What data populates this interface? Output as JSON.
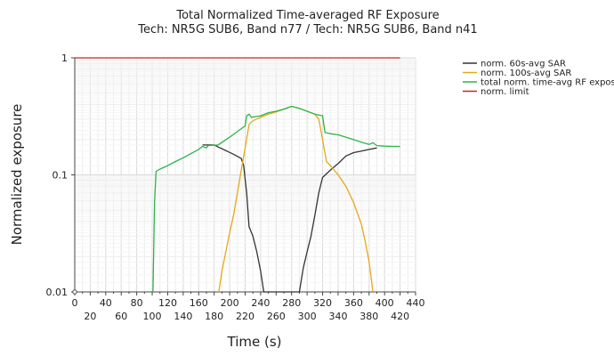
{
  "chart_data": {
    "type": "line",
    "title": "Total Normalized Time-averaged RF Exposure",
    "subtitle": "Tech: NR5G SUB6, Band n77 / Tech: NR5G SUB6, Band n41",
    "xlabel": "Time (s)",
    "ylabel": "Normalized exposure",
    "xlim": [
      0,
      440
    ],
    "ylim": [
      0.01,
      1
    ],
    "y_scale": "log",
    "grid": true,
    "legend_position": "top-right outside",
    "x_ticks_major": [
      "0",
      "40",
      "80",
      "120",
      "160",
      "200",
      "240",
      "280",
      "320",
      "360",
      "400",
      "440"
    ],
    "x_ticks_minor": [
      "20",
      "60",
      "100",
      "140",
      "180",
      "220",
      "260",
      "300",
      "340",
      "380",
      "420"
    ],
    "y_ticks": [
      "0.01",
      "0.1",
      "1"
    ],
    "series": [
      {
        "name": "norm. 60s-avg SAR",
        "color": "#333333",
        "points": [
          [
            165,
            0.18
          ],
          [
            180,
            0.18
          ],
          [
            192,
            0.165
          ],
          [
            205,
            0.15
          ],
          [
            215,
            0.138
          ],
          [
            218,
            0.12
          ],
          [
            222,
            0.07
          ],
          [
            225,
            0.036
          ],
          [
            230,
            0.03
          ],
          [
            235,
            0.022
          ],
          [
            240,
            0.015
          ],
          [
            244,
            0.01
          ],
          [
            290,
            0.01
          ],
          [
            295,
            0.016
          ],
          [
            300,
            0.022
          ],
          [
            305,
            0.03
          ],
          [
            310,
            0.045
          ],
          [
            315,
            0.07
          ],
          [
            320,
            0.095
          ],
          [
            330,
            0.11
          ],
          [
            340,
            0.125
          ],
          [
            350,
            0.145
          ],
          [
            360,
            0.155
          ],
          [
            370,
            0.16
          ],
          [
            380,
            0.165
          ],
          [
            390,
            0.17
          ]
        ]
      },
      {
        "name": "norm. 100s-avg SAR",
        "color": "#e6a817",
        "points": [
          [
            186,
            0.01
          ],
          [
            190,
            0.015
          ],
          [
            195,
            0.022
          ],
          [
            200,
            0.032
          ],
          [
            205,
            0.045
          ],
          [
            210,
            0.07
          ],
          [
            215,
            0.11
          ],
          [
            220,
            0.17
          ],
          [
            225,
            0.27
          ],
          [
            230,
            0.29
          ],
          [
            240,
            0.31
          ],
          [
            250,
            0.33
          ],
          [
            260,
            0.345
          ],
          [
            270,
            0.365
          ],
          [
            280,
            0.385
          ],
          [
            290,
            0.37
          ],
          [
            300,
            0.35
          ],
          [
            310,
            0.33
          ],
          [
            315,
            0.3
          ],
          [
            320,
            0.2
          ],
          [
            325,
            0.13
          ],
          [
            330,
            0.12
          ],
          [
            340,
            0.1
          ],
          [
            350,
            0.08
          ],
          [
            360,
            0.058
          ],
          [
            370,
            0.038
          ],
          [
            375,
            0.027
          ],
          [
            380,
            0.018
          ],
          [
            385,
            0.01
          ]
        ]
      },
      {
        "name": "total norm. time-avg RF exposure",
        "color": "#2db34a",
        "points": [
          [
            101,
            0.01
          ],
          [
            103,
            0.06
          ],
          [
            105,
            0.107
          ],
          [
            110,
            0.112
          ],
          [
            120,
            0.12
          ],
          [
            130,
            0.13
          ],
          [
            140,
            0.14
          ],
          [
            150,
            0.152
          ],
          [
            160,
            0.165
          ],
          [
            165,
            0.175
          ],
          [
            170,
            0.17
          ],
          [
            172,
            0.178
          ],
          [
            185,
            0.18
          ],
          [
            200,
            0.21
          ],
          [
            212,
            0.24
          ],
          [
            220,
            0.262
          ],
          [
            222,
            0.32
          ],
          [
            225,
            0.33
          ],
          [
            228,
            0.31
          ],
          [
            240,
            0.32
          ],
          [
            250,
            0.34
          ],
          [
            260,
            0.35
          ],
          [
            270,
            0.365
          ],
          [
            280,
            0.385
          ],
          [
            290,
            0.37
          ],
          [
            300,
            0.35
          ],
          [
            310,
            0.33
          ],
          [
            320,
            0.32
          ],
          [
            323,
            0.23
          ],
          [
            330,
            0.225
          ],
          [
            340,
            0.22
          ],
          [
            350,
            0.21
          ],
          [
            360,
            0.2
          ],
          [
            370,
            0.19
          ],
          [
            380,
            0.182
          ],
          [
            385,
            0.188
          ],
          [
            390,
            0.178
          ],
          [
            400,
            0.176
          ],
          [
            410,
            0.175
          ],
          [
            420,
            0.175
          ]
        ]
      },
      {
        "name": "norm. limit",
        "color": "#d62020",
        "points": [
          [
            0,
            1
          ],
          [
            420,
            1
          ]
        ]
      }
    ]
  }
}
